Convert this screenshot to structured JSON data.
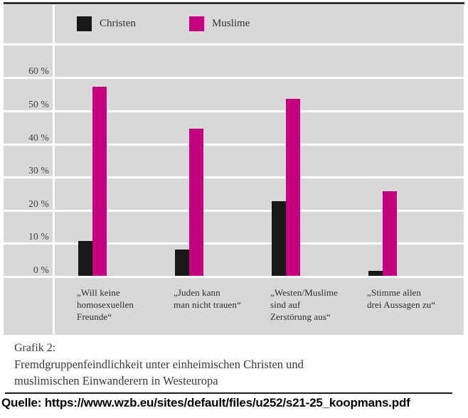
{
  "legend": {
    "items": [
      {
        "label": "Christen",
        "color": "#1a1816"
      },
      {
        "label": "Muslime",
        "color": "#c4007e"
      }
    ]
  },
  "chart_data": {
    "type": "bar",
    "title": "",
    "xlabel": "",
    "ylabel": "",
    "ylim": [
      0,
      70
    ],
    "grid": true,
    "legend_position": "top",
    "gridline_color": "#ffffff",
    "panel_color": "#d8d8d9",
    "yticks": [
      {
        "value": 0,
        "label": "0 %"
      },
      {
        "value": 10,
        "label": "10 %"
      },
      {
        "value": 20,
        "label": "20 %"
      },
      {
        "value": 30,
        "label": "30 %"
      },
      {
        "value": 40,
        "label": "40 %"
      },
      {
        "value": 50,
        "label": "50 %"
      },
      {
        "value": 60,
        "label": "60 %"
      }
    ],
    "categories": [
      "„Will keine homosexuellen Freunde“",
      "„Juden kann man nicht trauen“",
      "„Westen/Muslime sind auf Zerstörung aus“",
      "„Stimme allen drei Aussagen zu“"
    ],
    "category_lines": [
      [
        "„Will keine",
        "homosexuellen",
        "Freunde“"
      ],
      [
        "„Juden kann",
        "man nicht trauen“"
      ],
      [
        "„Westen/Muslime",
        "sind auf",
        "Zerstörung aus“"
      ],
      [
        "„Stimme allen",
        "drei Aussagen zu“"
      ]
    ],
    "series": [
      {
        "name": "Christen",
        "color": "#1a1816",
        "values": [
          10.5,
          8,
          22.5,
          1.5
        ]
      },
      {
        "name": "Muslime",
        "color": "#c4007e",
        "values": [
          57,
          44.5,
          53.5,
          25.5
        ]
      }
    ]
  },
  "caption": {
    "title": "Grafik 2:",
    "line1": "Fremdgruppenfeindlichkeit unter einheimischen Christen und",
    "line2": "muslimischen Einwanderern in Westeuropa"
  },
  "source": {
    "label": "Quelle: https://www.wzb.eu/sites/default/files/u252/s21-25_koopmans.pdf"
  }
}
